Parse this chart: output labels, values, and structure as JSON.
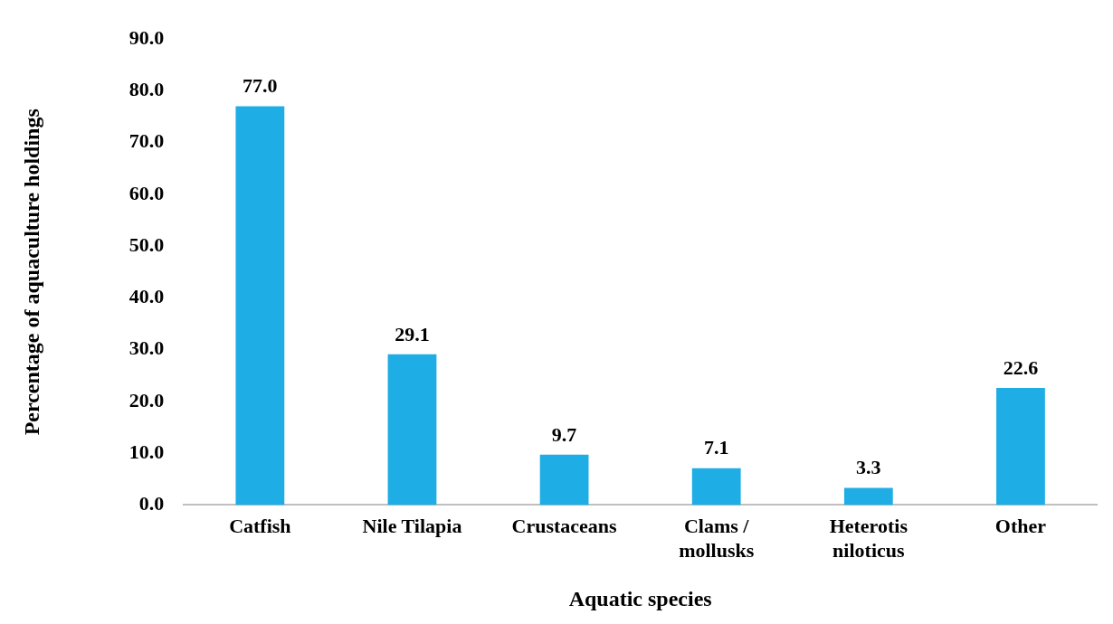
{
  "chart_data": {
    "type": "bar",
    "xlabel": "Aquatic species",
    "ylabel": "Percentage of aquaculture holdings",
    "categories": [
      "Catfish",
      "Nile Tilapia",
      "Crustaceans",
      "Clams / mollusks",
      "Heterotis niloticus",
      "Other"
    ],
    "values": [
      77.0,
      29.1,
      9.7,
      7.1,
      3.3,
      22.6
    ],
    "value_labels": [
      "77.0",
      "29.1",
      "9.7",
      "7.1",
      "3.3",
      "22.6"
    ],
    "color": "#1eade4",
    "ylim": [
      0,
      90
    ],
    "yticks": [
      {
        "value": 0,
        "label": "0.0"
      },
      {
        "value": 10,
        "label": "10.0"
      },
      {
        "value": 20,
        "label": "20.0"
      },
      {
        "value": 30,
        "label": "30.0"
      },
      {
        "value": 40,
        "label": "40.0"
      },
      {
        "value": 50,
        "label": "50.0"
      },
      {
        "value": 60,
        "label": "60.0"
      },
      {
        "value": 70,
        "label": "70.0"
      },
      {
        "value": 80,
        "label": "80.0"
      },
      {
        "value": 90,
        "label": "90.0"
      }
    ],
    "grid": false,
    "legend": false
  }
}
